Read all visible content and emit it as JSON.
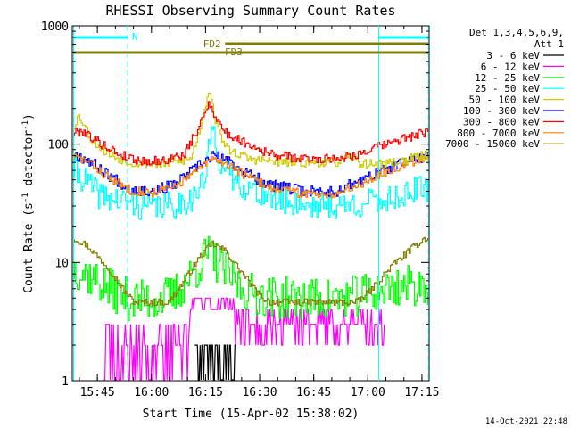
{
  "chart_data": {
    "type": "line",
    "title": "RHESSI Observing Summary Count Rates",
    "xlabel": "Start Time (15-Apr-02 15:38:02)",
    "ylabel_main": "Count Rate (s",
    "ylabel_exp1": "-1",
    "ylabel_mid": " detector",
    "ylabel_exp2": "-1",
    "ylabel_end": ")",
    "yscale": "log",
    "ylim": [
      1,
      1000
    ],
    "xlim": [
      15.6339,
      17.2833
    ],
    "x_ticks": [
      {
        "v": 15.75,
        "label": "15:45"
      },
      {
        "v": 16.0,
        "label": "16:00"
      },
      {
        "v": 16.25,
        "label": "16:15"
      },
      {
        "v": 16.5,
        "label": "16:30"
      },
      {
        "v": 16.75,
        "label": "16:45"
      },
      {
        "v": 17.0,
        "label": "17:00"
      },
      {
        "v": 17.25,
        "label": "17:15"
      }
    ],
    "y_ticks": [
      {
        "v": 1,
        "label": "1"
      },
      {
        "v": 10,
        "label": "10"
      },
      {
        "v": 100,
        "label": "100"
      },
      {
        "v": 1000,
        "label": "1000"
      }
    ],
    "legend_header": [
      "Det 1,3,4,5,6,9,",
      "Att 1"
    ],
    "series": [
      {
        "name": "3 - 6 keV",
        "color": "#000000",
        "seed": 11,
        "kind": "black"
      },
      {
        "name": "6 - 12 keV",
        "color": "#ff00ff",
        "seed": 23,
        "kind": "magenta"
      },
      {
        "name": "12 - 25 keV",
        "color": "#00ff00",
        "seed": 37,
        "points": [
          [
            15.64,
            9
          ],
          [
            15.7,
            8
          ],
          [
            15.8,
            6
          ],
          [
            15.9,
            4.8
          ],
          [
            16.0,
            4.8
          ],
          [
            16.1,
            5.2
          ],
          [
            16.2,
            8.5
          ],
          [
            16.26,
            12
          ],
          [
            16.3,
            10
          ],
          [
            16.38,
            7
          ],
          [
            16.45,
            5.5
          ],
          [
            16.6,
            5
          ],
          [
            16.8,
            4.9
          ],
          [
            16.95,
            5.2
          ],
          [
            17.05,
            5.8
          ],
          [
            17.15,
            6.3
          ],
          [
            17.26,
            6.5
          ]
        ],
        "noise": 0.18
      },
      {
        "name": "25 - 50 keV",
        "color": "#00ffff",
        "seed": 41,
        "points": [
          [
            15.64,
            60
          ],
          [
            15.7,
            48
          ],
          [
            15.75,
            38
          ],
          [
            15.85,
            33
          ],
          [
            15.95,
            30
          ],
          [
            16.1,
            30
          ],
          [
            16.2,
            36
          ],
          [
            16.25,
            55
          ],
          [
            16.28,
            150
          ],
          [
            16.31,
            75
          ],
          [
            16.35,
            55
          ],
          [
            16.45,
            42
          ],
          [
            16.55,
            35
          ],
          [
            16.7,
            31
          ],
          [
            16.85,
            30
          ],
          [
            16.95,
            31
          ],
          [
            17.05,
            33
          ],
          [
            17.15,
            37
          ],
          [
            17.26,
            42
          ]
        ],
        "noise": 0.12
      },
      {
        "name": "50 - 100 keV",
        "color": "#cccc00",
        "seed": 53,
        "points": [
          [
            15.64,
            140
          ],
          [
            15.66,
            175
          ],
          [
            15.68,
            155
          ],
          [
            15.72,
            110
          ],
          [
            15.8,
            82
          ],
          [
            15.9,
            70
          ],
          [
            16.05,
            68
          ],
          [
            16.18,
            75
          ],
          [
            16.23,
            150
          ],
          [
            16.265,
            300
          ],
          [
            16.3,
            140
          ],
          [
            16.35,
            90
          ],
          [
            16.45,
            75
          ],
          [
            16.6,
            70
          ],
          [
            16.85,
            70
          ],
          [
            16.93,
            78
          ],
          [
            16.97,
            68
          ],
          [
            17.05,
            68
          ],
          [
            17.15,
            72
          ],
          [
            17.26,
            80
          ]
        ],
        "noise": 0.04
      },
      {
        "name": "100 - 300 keV",
        "color": "#0000ff",
        "seed": 67,
        "points": [
          [
            15.64,
            82
          ],
          [
            15.7,
            75
          ],
          [
            15.8,
            55
          ],
          [
            15.9,
            42
          ],
          [
            16.0,
            40
          ],
          [
            16.1,
            45
          ],
          [
            16.2,
            62
          ],
          [
            16.28,
            80
          ],
          [
            16.35,
            72
          ],
          [
            16.45,
            55
          ],
          [
            16.55,
            45
          ],
          [
            16.7,
            40
          ],
          [
            16.85,
            40
          ],
          [
            16.95,
            48
          ],
          [
            17.05,
            58
          ],
          [
            17.15,
            68
          ],
          [
            17.26,
            80
          ]
        ],
        "noise": 0.05
      },
      {
        "name": "300 - 800 keV",
        "color": "#ff0000",
        "seed": 79,
        "points": [
          [
            15.64,
            125
          ],
          [
            15.68,
            130
          ],
          [
            15.75,
            105
          ],
          [
            15.85,
            82
          ],
          [
            15.95,
            72
          ],
          [
            16.05,
            72
          ],
          [
            16.15,
            82
          ],
          [
            16.22,
            140
          ],
          [
            16.265,
            230
          ],
          [
            16.3,
            160
          ],
          [
            16.35,
            120
          ],
          [
            16.45,
            100
          ],
          [
            16.55,
            82
          ],
          [
            16.7,
            75
          ],
          [
            16.85,
            76
          ],
          [
            16.95,
            82
          ],
          [
            17.05,
            95
          ],
          [
            17.15,
            110
          ],
          [
            17.26,
            125
          ]
        ],
        "noise": 0.04
      },
      {
        "name": "800 - 7000 keV",
        "color": "#ff8000",
        "seed": 83,
        "points": [
          [
            15.64,
            78
          ],
          [
            15.7,
            72
          ],
          [
            15.8,
            52
          ],
          [
            15.9,
            41
          ],
          [
            16.0,
            39
          ],
          [
            16.1,
            43
          ],
          [
            16.2,
            58
          ],
          [
            16.28,
            75
          ],
          [
            16.35,
            68
          ],
          [
            16.45,
            52
          ],
          [
            16.55,
            43
          ],
          [
            16.7,
            38
          ],
          [
            16.85,
            38
          ],
          [
            16.95,
            45
          ],
          [
            17.05,
            55
          ],
          [
            17.15,
            65
          ],
          [
            17.26,
            78
          ]
        ],
        "noise": 0.04
      },
      {
        "name": "7000 - 15000 keV",
        "color": "#808000",
        "seed": 97,
        "points": [
          [
            15.64,
            16
          ],
          [
            15.7,
            14
          ],
          [
            15.8,
            9
          ],
          [
            15.88,
            5.5
          ],
          [
            15.92,
            4.6
          ],
          [
            16.08,
            4.6
          ],
          [
            16.15,
            7
          ],
          [
            16.22,
            11
          ],
          [
            16.28,
            14.5
          ],
          [
            16.34,
            12.5
          ],
          [
            16.42,
            8
          ],
          [
            16.5,
            5.2
          ],
          [
            16.55,
            4.6
          ],
          [
            16.95,
            4.6
          ],
          [
            17.02,
            6
          ],
          [
            17.1,
            9
          ],
          [
            17.2,
            13
          ],
          [
            17.26,
            16
          ]
        ],
        "noise": 0.03
      }
    ],
    "annotations": {
      "n_label": "N",
      "fd2_label": "FD2",
      "fd3_label": "FD3",
      "cyan_bars": [
        [
          15.64,
          15.89
        ],
        [
          17.05,
          17.28
        ]
      ],
      "fd2_range": [
        16.34,
        17.28
      ],
      "fd3_range": [
        15.64,
        17.28
      ],
      "vertical_solid": [
        15.64,
        17.05
      ],
      "vertical_dashed": [
        15.89,
        17.28
      ],
      "n_label_at": 15.91,
      "fd2_label_at": 16.28,
      "fd3_label_at": 16.38
    },
    "colors": {
      "annotation_cyan": "#00ffff",
      "annotation_olive": "#808000"
    }
  },
  "footer": {
    "timestamp": "14-Oct-2021 22:48"
  }
}
